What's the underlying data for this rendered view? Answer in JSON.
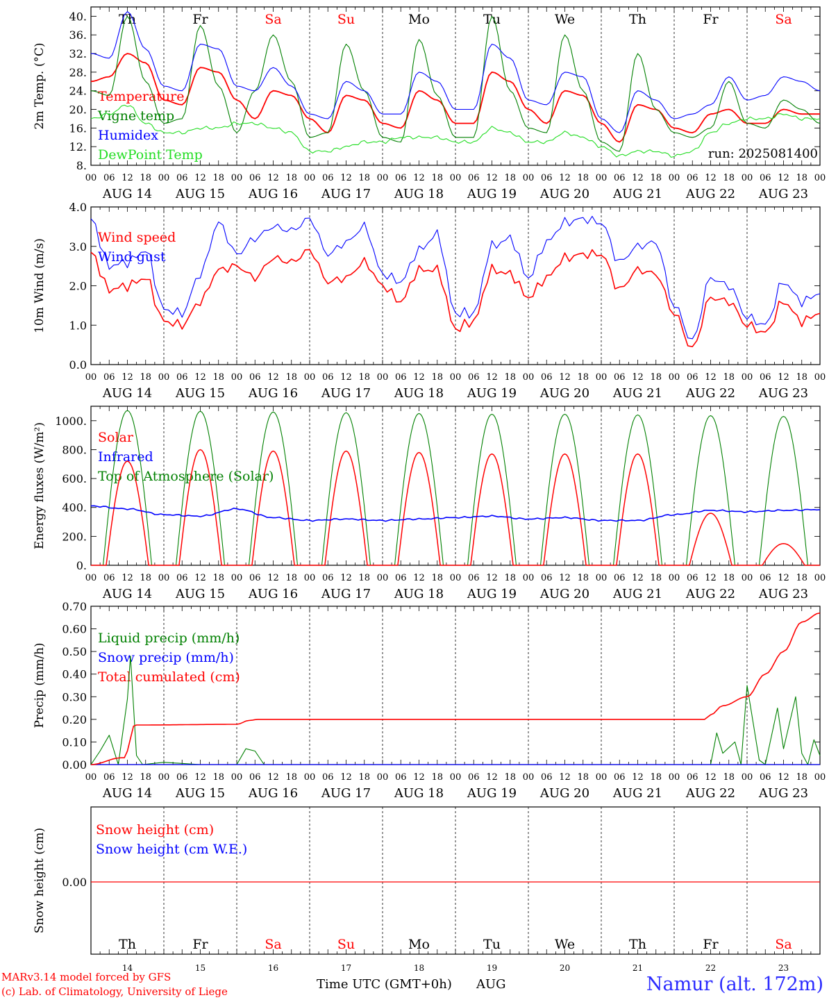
{
  "run_label": "run: 2025081400",
  "days": [
    "Th",
    "Fr",
    "Sa",
    "Su",
    "Mo",
    "Tu",
    "We",
    "Th",
    "Fr",
    "Sa"
  ],
  "weekend_days": [
    2,
    3,
    9
  ],
  "weekend_color": "#ff0000",
  "date_labels": [
    "AUG 14",
    "AUG 15",
    "AUG 16",
    "AUG 17",
    "AUG 18",
    "AUG 19",
    "AUG 20",
    "AUG 21",
    "AUG 22",
    "AUG 23"
  ],
  "hour_ticks": [
    "00",
    "06",
    "12",
    "18"
  ],
  "final_hour": "00",
  "bottom_day_numbers": [
    "14",
    "15",
    "16",
    "17",
    "18",
    "19",
    "20",
    "21",
    "22",
    "23"
  ],
  "x_axis_title": "Time UTC (GMT+0h)",
  "x_axis_month": "AUG",
  "credits": [
    "MARv3.14 model forced by GFS",
    "(c) Lab. of Climatology, University of Liege"
  ],
  "station": "Namur (alt. 172m)",
  "colors": {
    "red": "#ff0000",
    "green": "#008000",
    "blue": "#0000ff",
    "lightgreen": "#22dd22"
  },
  "chart_data": [
    {
      "type": "line",
      "ylabel": "2m Temp. (°C)",
      "ylim": [
        8,
        42
      ],
      "yticks": [
        8,
        12,
        16,
        20,
        24,
        28,
        32,
        36,
        40
      ],
      "ytick_labels": [
        "8.",
        "12.",
        "16.",
        "20.",
        "24.",
        "28.",
        "32.",
        "36.",
        "40."
      ],
      "legend": [
        "Temperature",
        "Vigne temp",
        "Humidex",
        "DewPoint Temp"
      ],
      "x_hours": [
        0,
        6,
        12,
        18,
        24,
        30,
        36,
        42,
        48,
        54,
        60,
        66,
        72,
        78,
        84,
        90,
        96,
        102,
        108,
        114,
        120,
        126,
        132,
        138,
        144,
        150,
        156,
        162,
        168,
        174,
        180,
        186,
        192,
        198,
        204,
        210,
        216,
        222,
        228,
        234,
        240
      ],
      "series": [
        {
          "name": "Temperature",
          "color": "red",
          "values": [
            26,
            27,
            32,
            30,
            22,
            21,
            29,
            28,
            22,
            18,
            24,
            23,
            18,
            15,
            23,
            22,
            17,
            16,
            24,
            22,
            17,
            17,
            28,
            26,
            20,
            17,
            24,
            23,
            17,
            13,
            21,
            20,
            16,
            15,
            19,
            20,
            17,
            17,
            20,
            19,
            19
          ]
        },
        {
          "name": "Vigne temp",
          "color": "green",
          "values": [
            24,
            23,
            40,
            26,
            17,
            18,
            38,
            25,
            15,
            24,
            36,
            26,
            14,
            15,
            34,
            24,
            14,
            13,
            35,
            23,
            14,
            14,
            40,
            24,
            16,
            15,
            36,
            24,
            13,
            11,
            32,
            20,
            15,
            14,
            16,
            26,
            17,
            16,
            22,
            20,
            17
          ]
        },
        {
          "name": "Humidex",
          "color": "blue",
          "values": [
            32,
            31,
            41,
            33,
            25,
            24,
            34,
            33,
            25,
            24,
            29,
            25,
            19,
            18,
            26,
            24,
            19,
            19,
            28,
            26,
            20,
            20,
            34,
            31,
            22,
            21,
            28,
            27,
            18,
            15,
            24,
            22,
            18,
            19,
            21,
            27,
            22,
            23,
            27,
            26,
            24
          ]
        },
        {
          "name": "DewPoint Temp",
          "color": "lightgreen",
          "values": [
            18,
            19,
            21,
            17,
            15,
            15,
            16,
            16,
            17,
            17,
            16,
            15,
            11,
            11,
            12,
            13,
            13,
            14,
            14,
            14,
            13,
            13,
            16,
            15,
            13,
            13,
            15,
            14,
            12,
            10,
            11,
            11,
            10,
            11,
            15,
            17,
            18,
            18,
            19,
            18,
            18
          ]
        }
      ]
    },
    {
      "type": "line",
      "ylabel": "10m Wind (m/s)",
      "ylim": [
        0,
        4
      ],
      "yticks": [
        0,
        1,
        2,
        3,
        4
      ],
      "ytick_labels": [
        "0.0",
        "1.0",
        "2.0",
        "3.0",
        "4.0"
      ],
      "legend": [
        "Wind speed",
        "Wind gust"
      ],
      "x_hours": [
        0,
        6,
        12,
        18,
        24,
        30,
        36,
        42,
        48,
        54,
        60,
        66,
        72,
        78,
        84,
        90,
        96,
        102,
        108,
        114,
        120,
        126,
        132,
        138,
        144,
        150,
        156,
        162,
        168,
        174,
        180,
        186,
        192,
        198,
        204,
        210,
        216,
        222,
        228,
        234,
        240
      ],
      "series": [
        {
          "name": "Wind speed",
          "color": "red",
          "values": [
            2.85,
            1.9,
            2.0,
            2.2,
            1.1,
            1.0,
            1.6,
            2.4,
            2.5,
            2.2,
            2.7,
            2.6,
            2.9,
            2.1,
            2.2,
            2.6,
            2.0,
            1.6,
            2.4,
            2.4,
            0.9,
            1.1,
            2.4,
            2.3,
            1.7,
            2.2,
            2.7,
            2.8,
            2.8,
            1.9,
            2.4,
            2.3,
            1.3,
            0.4,
            1.7,
            1.6,
            1.0,
            0.8,
            1.6,
            1.1,
            1.3
          ]
        },
        {
          "name": "Wind gust",
          "color": "blue",
          "values": [
            3.7,
            2.5,
            2.6,
            2.9,
            1.4,
            1.3,
            2.3,
            3.6,
            2.8,
            3.2,
            3.5,
            3.4,
            3.7,
            2.8,
            3.1,
            3.5,
            2.3,
            2.1,
            2.9,
            3.3,
            1.3,
            1.3,
            3.0,
            3.2,
            2.2,
            3.1,
            3.6,
            3.7,
            3.6,
            2.6,
            3.0,
            3.1,
            1.5,
            0.6,
            2.2,
            2.0,
            1.2,
            1.0,
            2.1,
            1.6,
            1.8
          ]
        }
      ]
    },
    {
      "type": "line",
      "ylabel": "Energy fluxes (W/m²)",
      "ylim": [
        0,
        1100
      ],
      "yticks": [
        0,
        200,
        400,
        600,
        800,
        1000
      ],
      "ytick_labels": [
        "0.",
        "200.",
        "400.",
        "600.",
        "800.",
        "1000."
      ],
      "legend": [
        "Solar",
        "Infrared",
        "Top of Atmosphere (Solar)"
      ],
      "daily_peaks": {
        "Solar": [
          720,
          800,
          790,
          790,
          780,
          770,
          770,
          770,
          360,
          150
        ],
        "Top of Atmosphere (Solar)": [
          1070,
          1065,
          1060,
          1055,
          1050,
          1045,
          1045,
          1040,
          1035,
          1030
        ]
      },
      "infrared_x_hours": [
        0,
        12,
        24,
        36,
        48,
        60,
        72,
        84,
        96,
        108,
        120,
        132,
        144,
        156,
        168,
        180,
        192,
        204,
        216,
        228,
        240
      ],
      "infrared_values": [
        410,
        390,
        350,
        340,
        390,
        330,
        310,
        320,
        310,
        320,
        330,
        340,
        320,
        330,
        310,
        310,
        350,
        380,
        370,
        380,
        385
      ]
    },
    {
      "type": "line",
      "ylabel": "Precip (mm/h)",
      "ylim": [
        0,
        0.7
      ],
      "yticks": [
        0,
        0.1,
        0.2,
        0.3,
        0.4,
        0.5,
        0.6,
        0.7
      ],
      "ytick_labels": [
        "0.00",
        "0.10",
        "0.20",
        "0.30",
        "0.40",
        "0.50",
        "0.60",
        "0.70"
      ],
      "legend": [
        "Liquid precip (mm/h)",
        "Snow precip (mm/h)",
        "Total cumulated (cm)"
      ],
      "liquid_x_hours": [
        0,
        3,
        6,
        9,
        12,
        13,
        15,
        17,
        24,
        36,
        48,
        51,
        54,
        57,
        60,
        204,
        206,
        208,
        212,
        214,
        216,
        220,
        222,
        226,
        228,
        232,
        234,
        236,
        238,
        240
      ],
      "liquid_values": [
        0.0,
        0.06,
        0.13,
        0.0,
        0.29,
        0.48,
        0.04,
        0.0,
        0.01,
        0.0,
        0.0,
        0.07,
        0.06,
        0.0,
        0.0,
        0.0,
        0.14,
        0.05,
        0.1,
        0.0,
        0.35,
        0.02,
        0.0,
        0.25,
        0.07,
        0.3,
        0.05,
        0.0,
        0.11,
        0.04
      ],
      "cumulated_x_hours": [
        0,
        10,
        11,
        12,
        14,
        15,
        48,
        52,
        55,
        202,
        204,
        208,
        216,
        222,
        228,
        234,
        240
      ],
      "cumulated_values": [
        0.0,
        0.03,
        0.03,
        0.06,
        0.17,
        0.175,
        0.178,
        0.195,
        0.2,
        0.2,
        0.22,
        0.26,
        0.3,
        0.4,
        0.5,
        0.63,
        0.67
      ]
    },
    {
      "type": "line",
      "ylabel": "Snow height (cm)",
      "ytick_labels": [
        "0.00"
      ],
      "legend": [
        "Snow height (cm)",
        "Snow height (cm W.E.)"
      ],
      "values": [
        0,
        0
      ]
    }
  ]
}
